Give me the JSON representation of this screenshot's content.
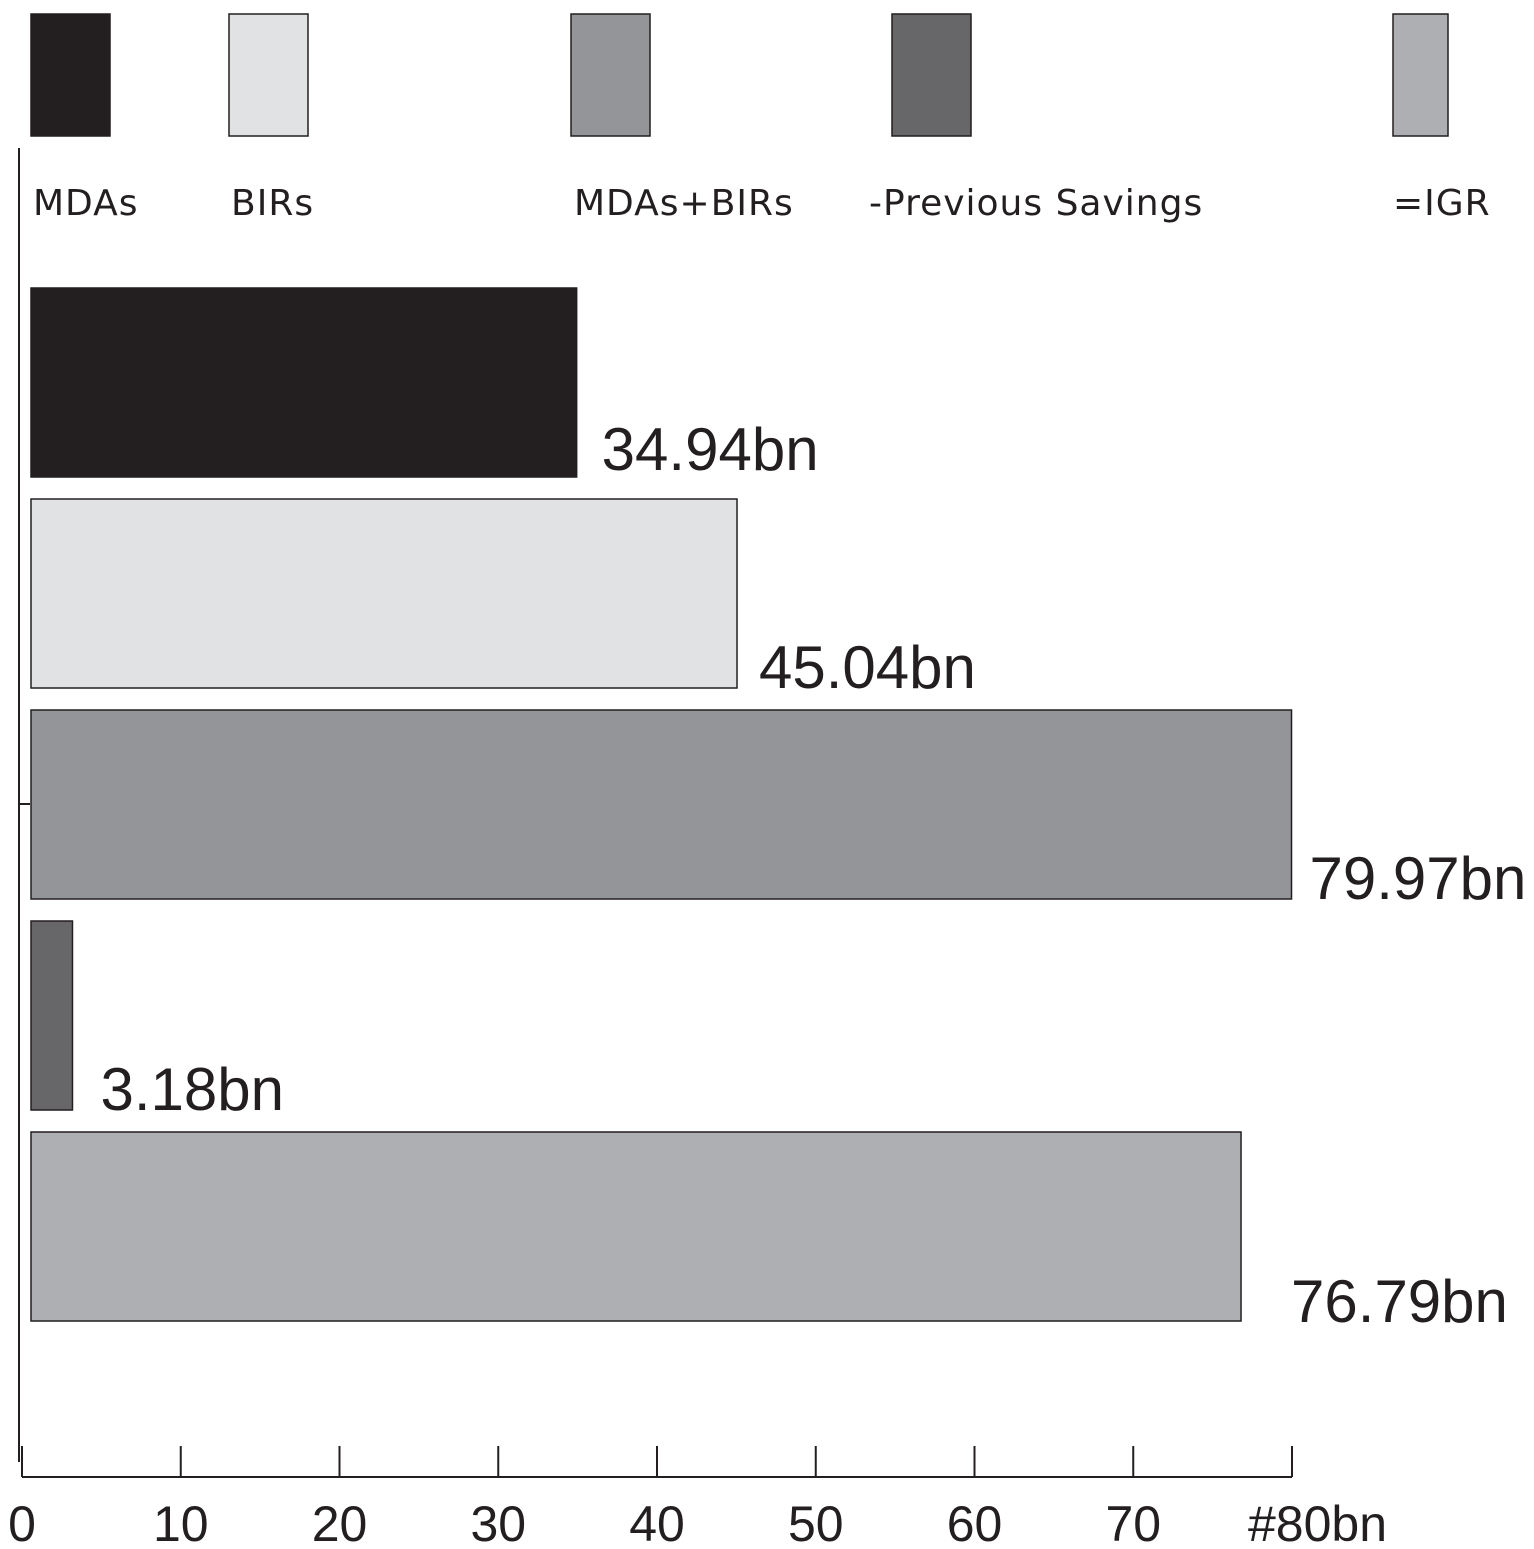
{
  "chart_data": {
    "type": "bar",
    "orientation": "horizontal",
    "categories": [
      "MDAs",
      "BIRs",
      "MDAs+BIRs",
      "-Previous Savings",
      "=IGR"
    ],
    "values": [
      34.94,
      45.04,
      79.97,
      3.18,
      76.79
    ],
    "value_labels": [
      "34.94bn",
      "45.04bn",
      "79.97bn",
      "3.18bn",
      "76.79bn"
    ],
    "colors": [
      "#231f20",
      "#e1e2e4",
      "#949599",
      "#676769",
      "#aeafb2"
    ],
    "x_ticks": [
      0,
      10,
      20,
      30,
      40,
      50,
      60,
      70,
      80
    ],
    "x_tick_labels": [
      "0",
      "10",
      "20",
      "30",
      "40",
      "50",
      "60",
      "70",
      "#80bn"
    ],
    "xlim": [
      0,
      80
    ],
    "legend_position": "top",
    "grid": false
  }
}
